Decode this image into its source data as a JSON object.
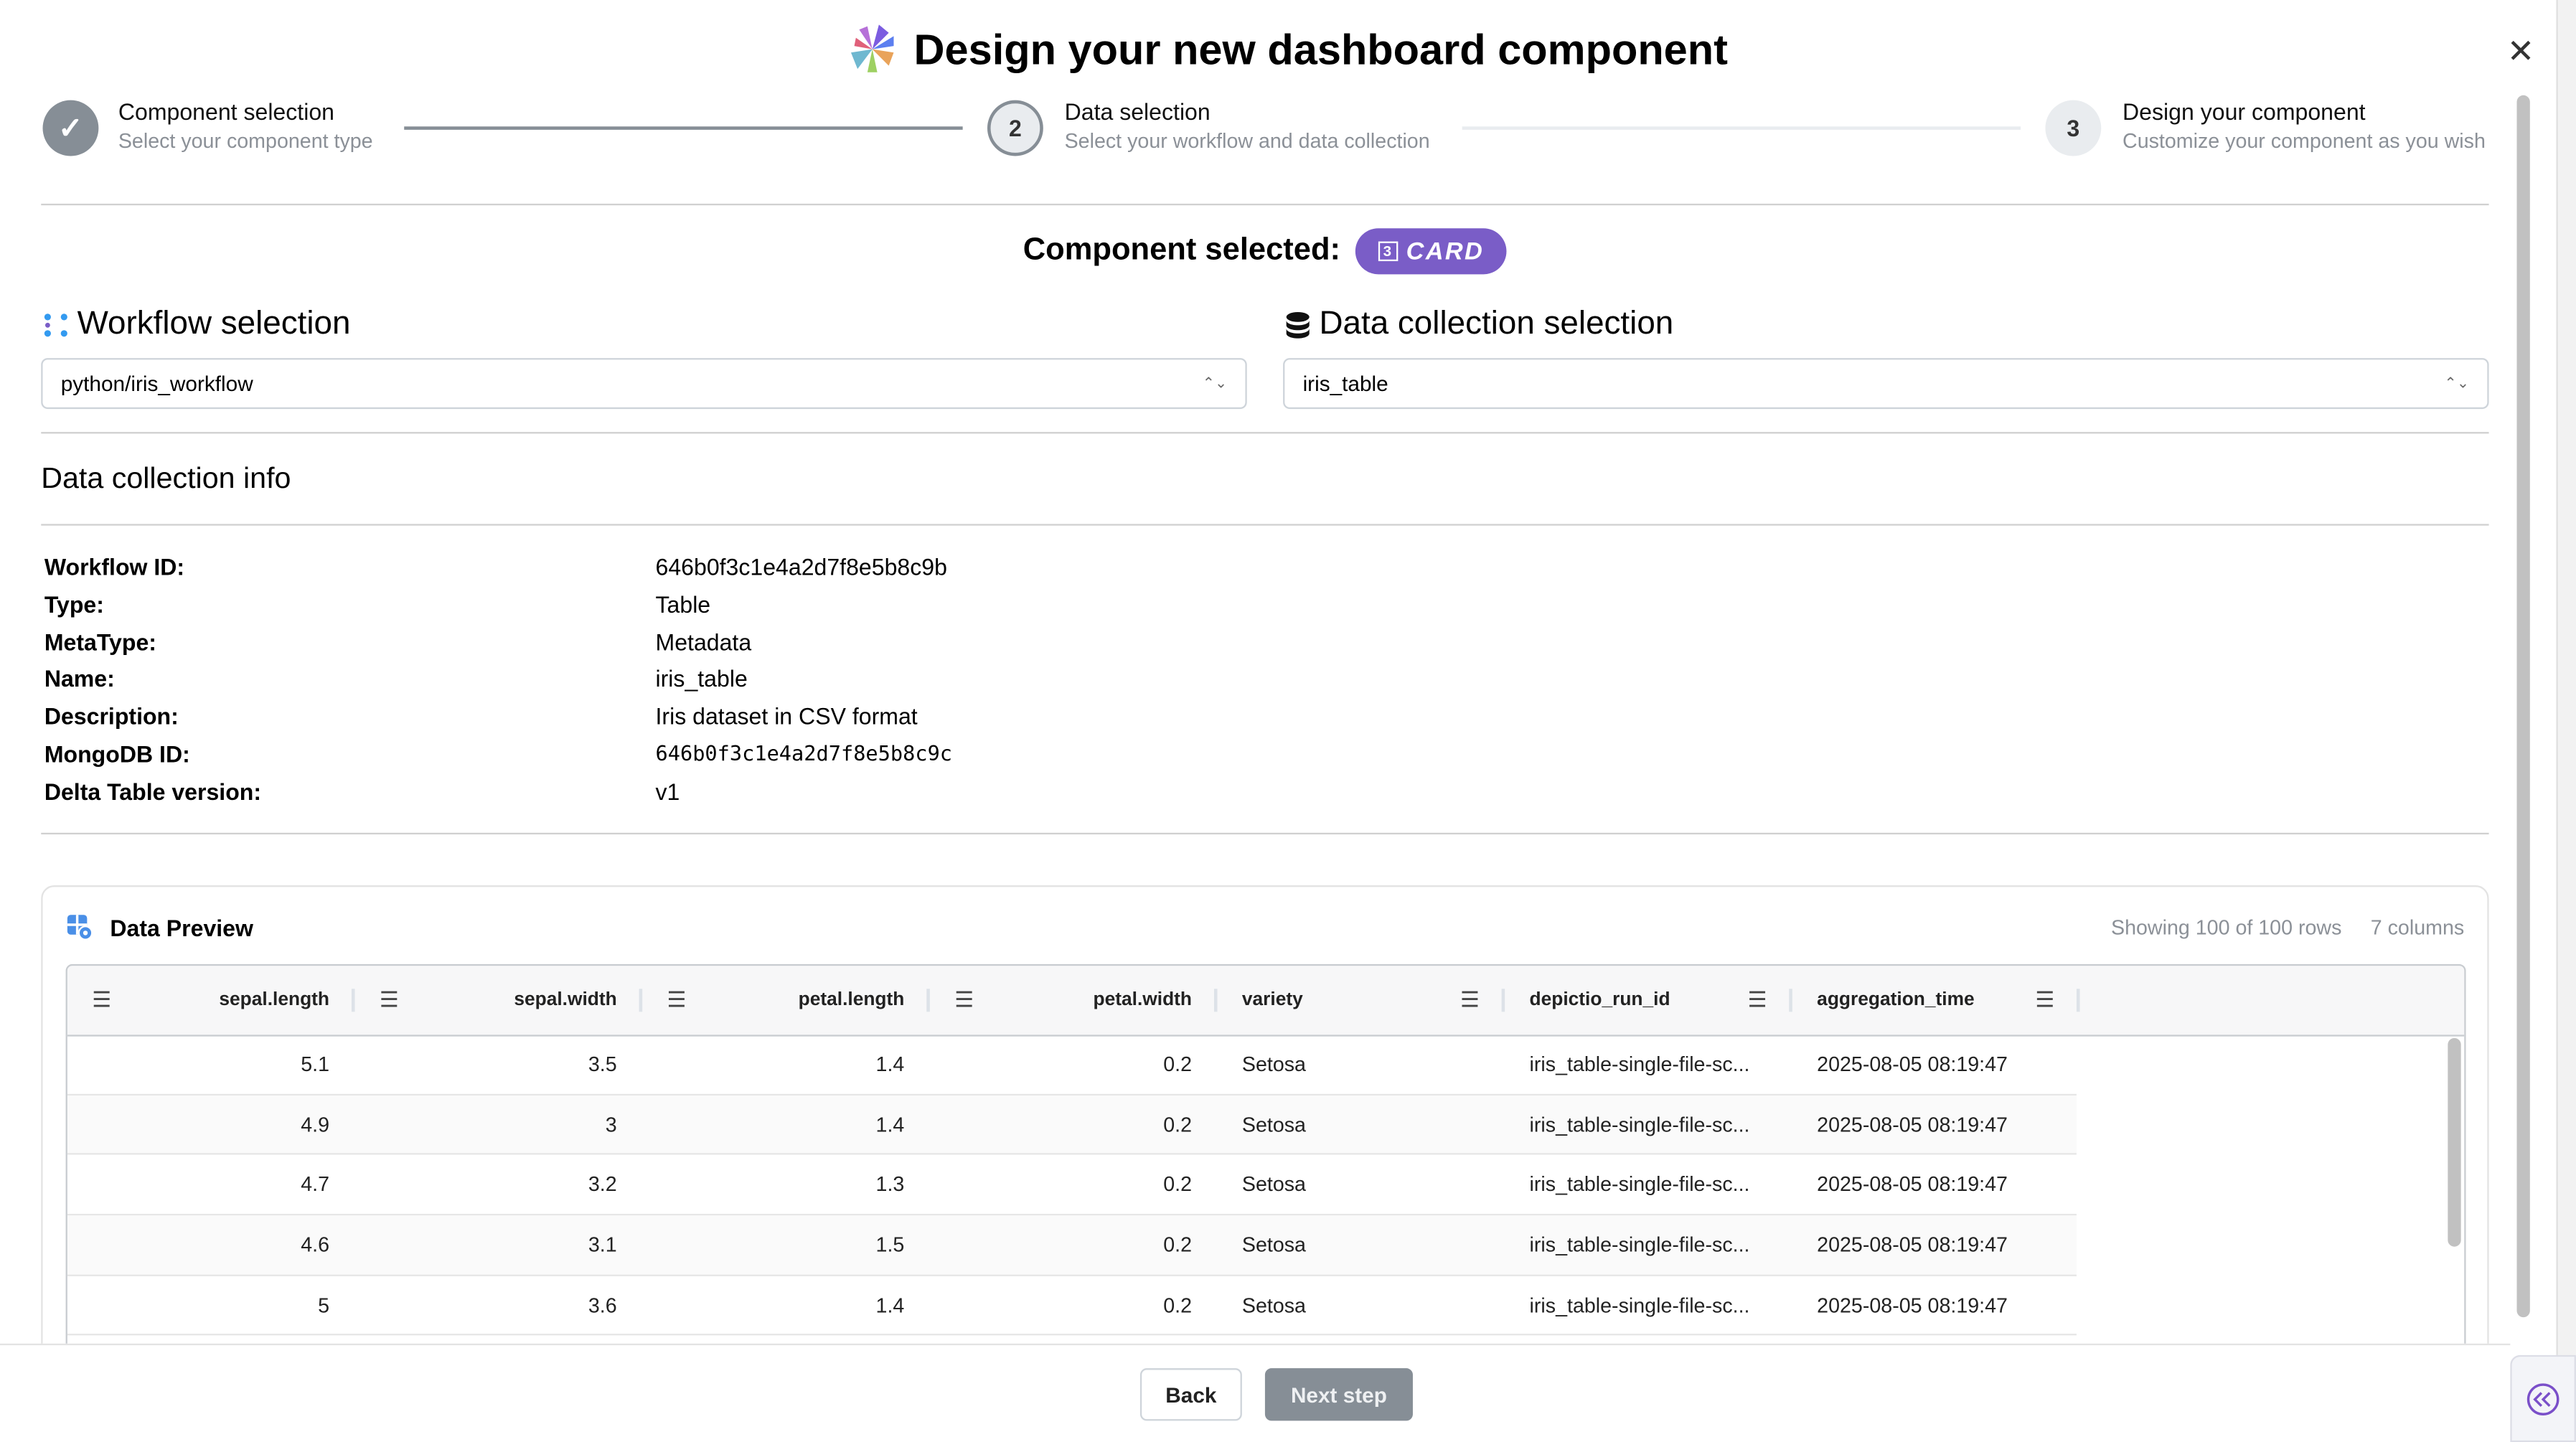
{
  "modal": {
    "title": "Design your new dashboard component",
    "close_icon": "close-icon"
  },
  "stepper": [
    {
      "number": "1",
      "title": "Component selection",
      "subtitle": "Select your component type",
      "state": "completed"
    },
    {
      "number": "2",
      "title": "Data selection",
      "subtitle": "Select your workflow and data collection",
      "state": "active"
    },
    {
      "number": "3",
      "title": "Design your component",
      "subtitle": "Customize your component as you wish",
      "state": "pending"
    }
  ],
  "component_selected": {
    "label": "Component selected:",
    "badge": "CARD",
    "badge_icon": "3",
    "badge_color": "#7a5dc7"
  },
  "workflow": {
    "heading": "Workflow selection",
    "value": "python/iris_workflow"
  },
  "data_collection": {
    "heading": "Data collection selection",
    "value": "iris_table"
  },
  "info": {
    "heading": "Data collection info",
    "rows": [
      {
        "label": "Workflow ID:",
        "value": "646b0f3c1e4a2d7f8e5b8c9b"
      },
      {
        "label": "Type:",
        "value": "Table"
      },
      {
        "label": "MetaType:",
        "value": "Metadata"
      },
      {
        "label": "Name:",
        "value": "iris_table"
      },
      {
        "label": "Description:",
        "value": "Iris dataset in CSV format"
      },
      {
        "label": "MongoDB ID:",
        "value": "646b0f3c1e4a2d7f8e5b8c9c"
      },
      {
        "label": "Delta Table version:",
        "value": "v1"
      }
    ]
  },
  "preview": {
    "title": "Data Preview",
    "rows_info": "Showing 100 of 100 rows",
    "columns_info": "7 columns",
    "columns": [
      "sepal.length",
      "sepal.width",
      "petal.length",
      "petal.width",
      "variety",
      "depictio_run_id",
      "aggregation_time"
    ],
    "rows": [
      [
        "5.1",
        "3.5",
        "1.4",
        "0.2",
        "Setosa",
        "iris_table-single-file-sc...",
        "2025-08-05 08:19:47"
      ],
      [
        "4.9",
        "3",
        "1.4",
        "0.2",
        "Setosa",
        "iris_table-single-file-sc...",
        "2025-08-05 08:19:47"
      ],
      [
        "4.7",
        "3.2",
        "1.3",
        "0.2",
        "Setosa",
        "iris_table-single-file-sc...",
        "2025-08-05 08:19:47"
      ],
      [
        "4.6",
        "3.1",
        "1.5",
        "0.2",
        "Setosa",
        "iris_table-single-file-sc...",
        "2025-08-05 08:19:47"
      ],
      [
        "5",
        "3.6",
        "1.4",
        "0.2",
        "Setosa",
        "iris_table-single-file-sc...",
        "2025-08-05 08:19:47"
      ]
    ]
  },
  "footer": {
    "back": "Back",
    "next": "Next step"
  }
}
